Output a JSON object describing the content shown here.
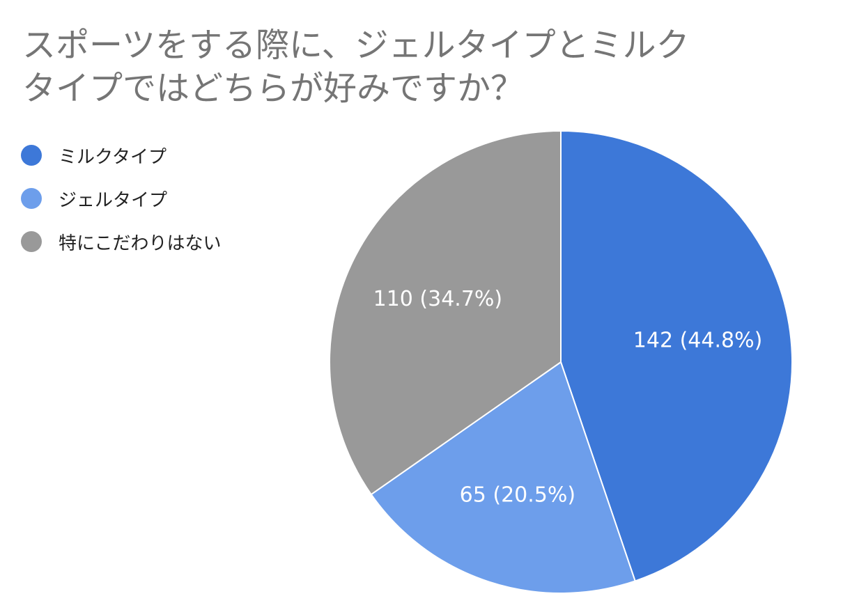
{
  "chart_data": {
    "type": "pie",
    "title": "スポーツをする際に、ジェルタイプとミルクタイプではどちらが好みですか？",
    "slices": [
      {
        "name": "ミルクタイプ",
        "value": 142,
        "percent": 44.8,
        "label": "142 (44.8%)",
        "color": "#3d78d8"
      },
      {
        "name": "ジェルタイプ",
        "value": 65,
        "percent": 20.5,
        "label": "65 (20.5%)",
        "color": "#6d9eeb"
      },
      {
        "name": "特にこだわりはない",
        "value": 110,
        "percent": 34.7,
        "label": "110 (34.7%)",
        "color": "#999999"
      }
    ],
    "legend_position": "left"
  }
}
